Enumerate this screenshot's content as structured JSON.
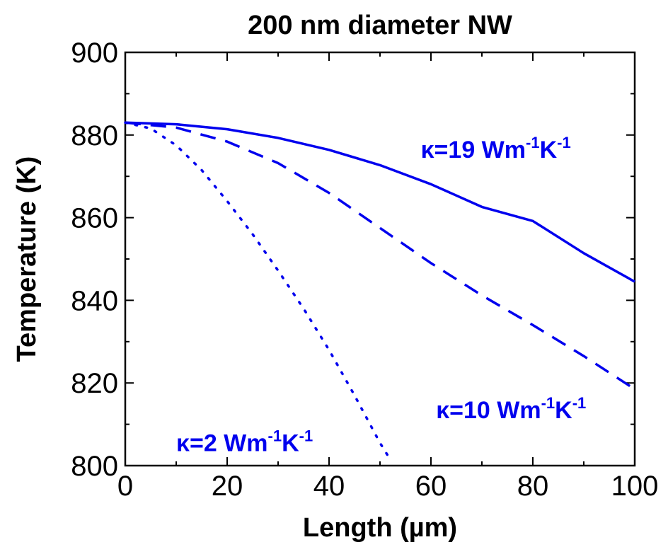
{
  "chart_data": {
    "type": "line",
    "title": "200 nm diameter NW",
    "xlabel": "Length (µm)",
    "ylabel": "Temperature (K)",
    "xlim": [
      0,
      100
    ],
    "ylim": [
      800,
      900
    ],
    "xticks": [
      0,
      20,
      40,
      60,
      80,
      100
    ],
    "yticks": [
      800,
      820,
      840,
      860,
      880,
      900
    ],
    "grid": false,
    "legend": "none",
    "line_color": "#0000ee",
    "series": [
      {
        "style": "solid",
        "x": [
          0,
          10,
          20,
          30,
          40,
          50,
          60,
          70,
          80,
          90,
          100
        ],
        "y": [
          883,
          882.6,
          881.4,
          879.3,
          876.4,
          872.7,
          868.1,
          862.6,
          859.2,
          851.4,
          844.5
        ]
      },
      {
        "style": "dashed",
        "x": [
          0,
          10,
          20,
          30,
          40,
          50,
          60,
          70,
          80,
          90,
          100
        ],
        "y": [
          883,
          881.8,
          878.4,
          873.2,
          866.0,
          857.5,
          849.0,
          841.2,
          834.0,
          826.5,
          818.5
        ]
      },
      {
        "style": "dotted",
        "x": [
          0,
          5,
          10,
          15,
          20,
          25,
          30,
          35,
          40,
          45,
          50,
          52
        ],
        "y": [
          883,
          881.6,
          877.5,
          871.5,
          864.0,
          856.0,
          847.2,
          838.0,
          828.0,
          817.0,
          805.5,
          801.5
        ]
      }
    ],
    "annotations": [
      {
        "prefix": "κ=19 Wm",
        "exp1": "-1",
        "mid": "K",
        "exp2": "-1",
        "x": 58,
        "y": 874.5
      },
      {
        "prefix": "κ=10 Wm",
        "exp1": "-1",
        "mid": "K",
        "exp2": "-1",
        "x": 61,
        "y": 811.5
      },
      {
        "prefix": "κ=2 Wm",
        "exp1": "-1",
        "mid": "K",
        "exp2": "-1",
        "x": 10,
        "y": 803.5
      }
    ]
  }
}
